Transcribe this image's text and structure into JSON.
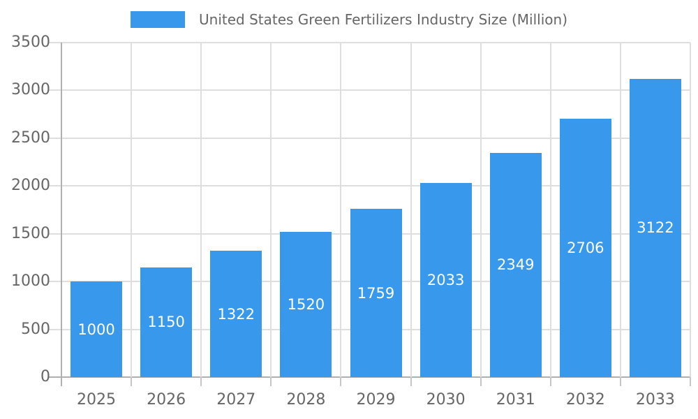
{
  "chart_data": {
    "type": "bar",
    "title": "United States Green Fertilizers Industry Size (Million)",
    "legend": {
      "position": "top",
      "entries": [
        {
          "label": "United States Green Fertilizers Industry Size (Million)",
          "color": "#3899ec"
        }
      ]
    },
    "categories": [
      "2025",
      "2026",
      "2027",
      "2028",
      "2029",
      "2030",
      "2031",
      "2032",
      "2033"
    ],
    "series": [
      {
        "name": "United States Green Fertilizers Industry Size (Million)",
        "values": [
          1000,
          1150,
          1322,
          1520,
          1759,
          2033,
          2349,
          2706,
          3122
        ]
      }
    ],
    "bar_labels": [
      "1000",
      "1150",
      "1322",
      "1520",
      "1759",
      "2033",
      "2349",
      "2706",
      "3122"
    ],
    "xlabel": "",
    "ylabel": "",
    "ylim": [
      0,
      3500
    ],
    "yticks": [
      "0",
      "500",
      "1000",
      "1500",
      "2000",
      "2500",
      "3000",
      "3500"
    ],
    "ytick_step": 500,
    "grid": "on",
    "colors": {
      "bar": "#3899ec",
      "bar_label_text": "#ffffff",
      "axis_text": "#666666",
      "gridline": "#dedede",
      "axis_line": "#b0b0b0",
      "category_tick": "#c6c6c6",
      "background": "#ffffff"
    }
  }
}
